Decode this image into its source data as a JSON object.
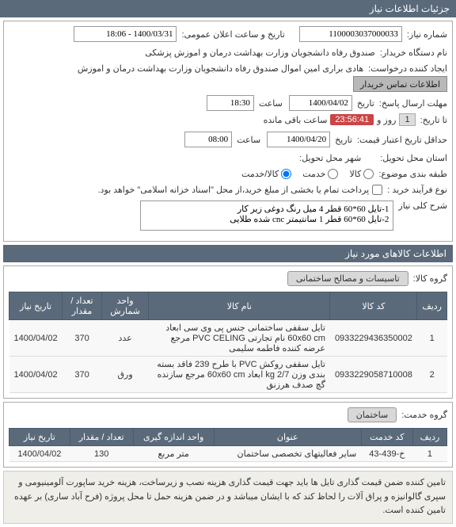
{
  "header": {
    "title": "جزئیات اطلاعات نیاز"
  },
  "form": {
    "need_no_label": "شماره نیاز:",
    "need_no": "1100003037000033",
    "pub_label": "تاریخ و ساعت اعلان عمومی:",
    "pub_value": "1400/03/31 - 18:06",
    "buyer_label": "نام دستگاه خریدار:",
    "buyer_value": "صندوق رفاه دانشجویان وزارت بهداشت  درمان و اموزش پزشکی",
    "creator_label": "ایجاد کننده درخواست:",
    "creator_value": "هادی براری امین اموال صندوق رفاه دانشجویان وزارت بهداشت  درمان و اموزش",
    "contact_btn": "اطلاعات تماس خریدار",
    "deadline_label": "مهلت ارسال پاسخ:",
    "deadline_d": "تاریخ",
    "deadline_date": "1400/04/02",
    "deadline_t": "ساعت",
    "deadline_time": "18:30",
    "remain_label": "تا تاریخ:",
    "remain_day": "1",
    "remain_day_l": "روز و",
    "remain_time": "23:56:41",
    "remain_l": "ساعت باقی مانده",
    "valid_label": "حداقل تاریخ اعتبار قیمت:",
    "valid_date": "1400/04/20",
    "valid_time": "08:00",
    "deliver_label": "استان محل تحویل:",
    "city_label": "شهر محل تحویل:",
    "topic_label": "طبقه بندی موضوع:",
    "radio_goods": "کالا",
    "radio_service": "خدمت",
    "radio_goodservice": "کالا/خدمت",
    "process_label": "نوع فرآیند خرید :",
    "process_text": "پرداخت تمام یا بخشی از مبلغ خرید،از محل \"اسناد خزانه اسلامی\" خواهد بود.",
    "desc_label": "شرح کلی نیاز",
    "desc_text": "1-تایل 60*60 قطر 4 میل رنگ دوغی زیر کار\n2-تایل 60*60 قطر 1 سانتیمتر cnc شده طلایی"
  },
  "goods_section": {
    "title": "اطلاعات کالاهای مورد نیاز",
    "group_label": "گروه کالا:",
    "group_value": "تاسیسات و مصالح ساختمانی"
  },
  "goods_table": {
    "headers": [
      "ردیف",
      "کد کالا",
      "نام کالا",
      "واحد شمارش",
      "تعداد / مقدار",
      "تاریخ نیاز"
    ],
    "rows": [
      {
        "n": "1",
        "code": "0933229436350002",
        "name": "تایل سقفی ساختمانی جنس پی وی سی ابعاد 60x60 cm نام تجارتی PVC CELING مرجع عرضه کننده فاطمه سلیمی",
        "unit": "عدد",
        "qty": "370",
        "date": "1400/04/02"
      },
      {
        "n": "2",
        "code": "0933229058710008",
        "name": "تایل سقفی روکش PVC با طرح 239 فاقد بسته بندی وزن 2/7 kg ابعاد 60x60 cm مرجع سازنده گچ صدف هرزنق",
        "unit": "ورق",
        "qty": "370",
        "date": "1400/04/02"
      }
    ]
  },
  "service_section": {
    "group_label": "گروه خدمت:",
    "group_value": "ساختمان"
  },
  "service_table": {
    "headers": [
      "ردیف",
      "کد خدمت",
      "عنوان",
      "واحد اندازه گیری",
      "تعداد / مقدار",
      "تاریخ نیاز"
    ],
    "rows": [
      {
        "n": "1",
        "code": "خ-439-43",
        "name": "سایر فعالیتهای تخصصی ساختمان",
        "unit": "متر مربع",
        "qty": "130",
        "date": "1400/04/02"
      }
    ]
  },
  "note": "تامین کننده ضمن قیمت گذاری تایل ها باید جهت قیمت گذاری هزینه نصب و زیرساخت، هزینه خرید ساپورت آلومینیومی و سپری گالوانیزه و پراق آلات را لحاظ کند که با ایشان میباشد و در ضمن هزینه حمل تا محل پروژه (فرح آباد ساری) بر عهده تامین کننده است."
}
